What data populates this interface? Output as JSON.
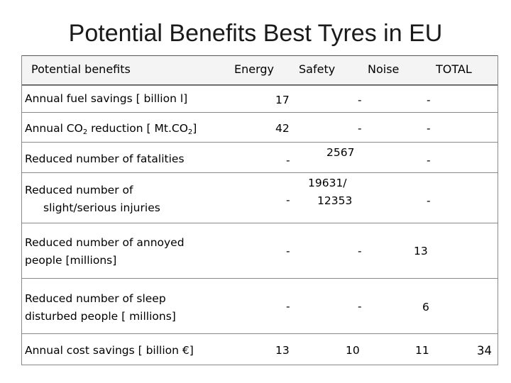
{
  "title": "Potential Benefits Best Tyres in EU",
  "headers": {
    "potential_benefits": "Potential benefits",
    "energy": "Energy",
    "safety": "Safety",
    "noise": "Noise",
    "total": "TOTAL"
  },
  "rows": [
    {
      "label_1": "Annual fuel savings [ billion l]",
      "energy": "17",
      "safety": "-",
      "noise": "-",
      "total": ""
    },
    {
      "label_pre": "Annual CO",
      "label_sub": "2",
      "label_mid": " reduction [ Mt.CO",
      "label_sub2": "2",
      "label_post": "]",
      "energy": "42",
      "safety": "-",
      "noise": "-",
      "total": ""
    },
    {
      "label_1": "Reduced number of fatalities",
      "energy": "-",
      "safety": "2567",
      "noise": "-",
      "total": ""
    },
    {
      "label_1": "Reduced number of",
      "label_2": "slight/serious injuries",
      "energy": "-",
      "safety_1": "19631/",
      "safety_2": "12353",
      "noise": "-",
      "total": ""
    },
    {
      "label_1": "Reduced number of annoyed",
      "label_2": "people [millions]",
      "energy": "-",
      "safety": "-",
      "noise": "13",
      "total": ""
    },
    {
      "label_1": "Reduced number of sleep",
      "label_2": "disturbed people [ millions]",
      "energy": "-",
      "safety": "-",
      "noise": "6",
      "total": ""
    },
    {
      "label_1": "Annual cost savings [ billion €]",
      "energy": "13",
      "safety": "10",
      "noise": "11",
      "total": "34"
    }
  ]
}
